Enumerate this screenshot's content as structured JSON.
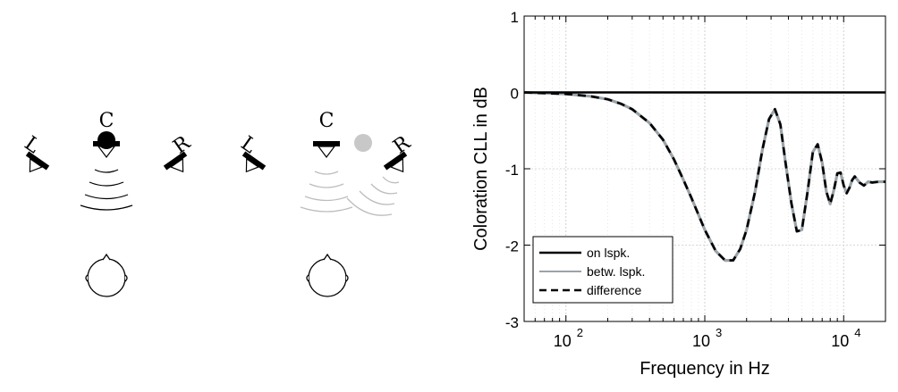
{
  "diagram": {
    "left_panel": {
      "speaker_left": "L",
      "speaker_center": "C",
      "speaker_right": "R"
    },
    "middle_panel": {
      "speaker_left": "L",
      "speaker_center": "C",
      "speaker_right": "R"
    }
  },
  "chart_data": {
    "type": "line",
    "xlabel": "Frequency in Hz",
    "ylabel": "Coloration CLL in dB",
    "xscale": "log",
    "xlim": [
      50,
      20000
    ],
    "ylim": [
      -3,
      1
    ],
    "grid": true,
    "legend_position": "bottom-left",
    "y_ticks": [
      "1",
      "0",
      "-1",
      "-2",
      "-3"
    ],
    "x_ticks": [
      {
        "base": "10",
        "exp": "2"
      },
      {
        "base": "10",
        "exp": "3"
      },
      {
        "base": "10",
        "exp": "4"
      }
    ],
    "series": [
      {
        "name": "on lspk.",
        "style": "solid",
        "color": "#000000",
        "x": [
          50,
          20000
        ],
        "y": [
          0,
          0
        ]
      },
      {
        "name": "betw. lspk.",
        "style": "solid",
        "color": "#9aa3a8",
        "x": [
          50,
          100,
          150,
          200,
          250,
          300,
          400,
          500,
          600,
          700,
          800,
          1000,
          1200,
          1400,
          1600,
          1800,
          2000,
          2300,
          2600,
          2900,
          3200,
          3500,
          3800,
          4200,
          4600,
          5000,
          5500,
          6000,
          6500,
          7000,
          7500,
          8000,
          8500,
          9000,
          9500,
          10000,
          10500,
          11000,
          11500,
          12000,
          13000,
          14000,
          15000,
          16000,
          18000,
          20000
        ],
        "y": [
          0,
          -0.02,
          -0.05,
          -0.09,
          -0.15,
          -0.22,
          -0.4,
          -0.62,
          -0.88,
          -1.14,
          -1.38,
          -1.8,
          -2.08,
          -2.2,
          -2.2,
          -2.05,
          -1.8,
          -1.3,
          -0.75,
          -0.35,
          -0.22,
          -0.42,
          -0.9,
          -1.45,
          -1.82,
          -1.8,
          -1.3,
          -0.78,
          -0.68,
          -0.92,
          -1.3,
          -1.46,
          -1.28,
          -1.06,
          -1.05,
          -1.22,
          -1.32,
          -1.25,
          -1.15,
          -1.1,
          -1.18,
          -1.22,
          -1.17,
          -1.18,
          -1.17,
          -1.17
        ]
      },
      {
        "name": "difference",
        "style": "dashed",
        "color": "#000000",
        "x": [
          50,
          100,
          150,
          200,
          250,
          300,
          400,
          500,
          600,
          700,
          800,
          1000,
          1200,
          1400,
          1600,
          1800,
          2000,
          2300,
          2600,
          2900,
          3200,
          3500,
          3800,
          4200,
          4600,
          5000,
          5500,
          6000,
          6500,
          7000,
          7500,
          8000,
          8500,
          9000,
          9500,
          10000,
          10500,
          11000,
          11500,
          12000,
          13000,
          14000,
          15000,
          16000,
          18000,
          20000
        ],
        "y": [
          0,
          -0.02,
          -0.05,
          -0.09,
          -0.15,
          -0.22,
          -0.4,
          -0.62,
          -0.88,
          -1.14,
          -1.38,
          -1.8,
          -2.08,
          -2.2,
          -2.2,
          -2.05,
          -1.8,
          -1.3,
          -0.75,
          -0.35,
          -0.22,
          -0.42,
          -0.9,
          -1.45,
          -1.82,
          -1.8,
          -1.3,
          -0.78,
          -0.68,
          -0.92,
          -1.3,
          -1.46,
          -1.28,
          -1.06,
          -1.05,
          -1.22,
          -1.32,
          -1.25,
          -1.15,
          -1.1,
          -1.18,
          -1.22,
          -1.17,
          -1.18,
          -1.17,
          -1.17
        ]
      }
    ]
  }
}
